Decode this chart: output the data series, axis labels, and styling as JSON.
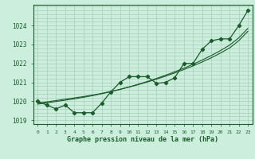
{
  "xlabel": "Graphe pression niveau de la mer (hPa)",
  "bg_color": "#cceedd",
  "grid_color": "#aaccbb",
  "line_color": "#1a5c2a",
  "xlim": [
    -0.5,
    23.5
  ],
  "ylim": [
    1018.8,
    1025.1
  ],
  "yticks": [
    1019,
    1020,
    1021,
    1022,
    1023,
    1024
  ],
  "hours": [
    0,
    1,
    2,
    3,
    4,
    5,
    6,
    7,
    8,
    9,
    10,
    11,
    12,
    13,
    14,
    15,
    16,
    17,
    18,
    19,
    20,
    21,
    22,
    23
  ],
  "pressure": [
    1020.0,
    1019.8,
    1019.6,
    1019.8,
    1019.4,
    1019.4,
    1019.4,
    1019.9,
    1020.5,
    1021.0,
    1021.3,
    1021.3,
    1021.3,
    1020.95,
    1021.0,
    1021.25,
    1022.0,
    1022.0,
    1022.75,
    1023.2,
    1023.3,
    1023.3,
    1024.0,
    1024.8
  ],
  "trend1": [
    1019.9,
    1019.97,
    1020.04,
    1020.11,
    1020.18,
    1020.25,
    1020.33,
    1020.42,
    1020.52,
    1020.63,
    1020.75,
    1020.88,
    1021.02,
    1021.17,
    1021.33,
    1021.5,
    1021.68,
    1021.87,
    1022.08,
    1022.3,
    1022.55,
    1022.82,
    1023.2,
    1023.7
  ],
  "trend2": [
    1019.85,
    1019.92,
    1019.99,
    1020.06,
    1020.13,
    1020.21,
    1020.3,
    1020.4,
    1020.51,
    1020.63,
    1020.76,
    1020.9,
    1021.05,
    1021.21,
    1021.38,
    1021.56,
    1021.75,
    1021.96,
    1022.18,
    1022.42,
    1022.68,
    1022.97,
    1023.35,
    1023.85
  ]
}
